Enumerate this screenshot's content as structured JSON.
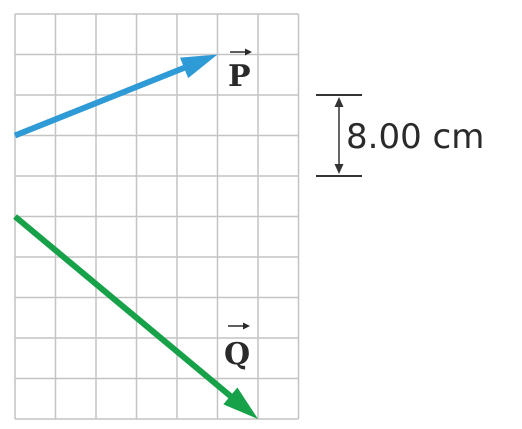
{
  "grid": {
    "columns": 7,
    "rows": 10,
    "line_color": "#c4c4c4"
  },
  "vectors": [
    {
      "name": "P",
      "label": "P",
      "color": "#2e9ad6",
      "tail_cell": [
        0,
        3
      ],
      "head_cell": [
        5,
        1
      ]
    },
    {
      "name": "Q",
      "label": "Q",
      "color": "#17a24a",
      "tail_cell": [
        0,
        5
      ],
      "head_cell": [
        6,
        10
      ]
    }
  ],
  "scale_bar": {
    "label": "8.00 cm",
    "cells": 2,
    "color": "#333333"
  }
}
